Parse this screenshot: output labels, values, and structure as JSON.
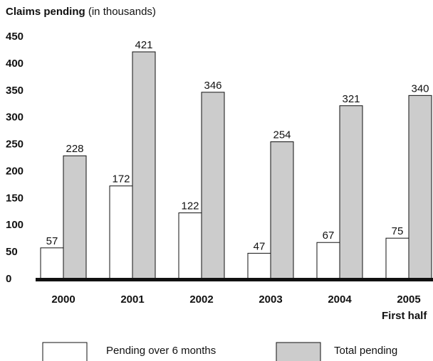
{
  "chart_data": {
    "type": "bar",
    "title": "Claims pending",
    "title_suffix": "(in thousands)",
    "categories": [
      "2000",
      "2001",
      "2002",
      "2003",
      "2004",
      "2005"
    ],
    "category_sublabels": [
      "",
      "",
      "",
      "",
      "",
      "First half"
    ],
    "series": [
      {
        "name": "Pending over 6 months",
        "values": [
          57,
          172,
          122,
          47,
          67,
          75
        ],
        "color": "#ffffff"
      },
      {
        "name": "Total pending",
        "values": [
          228,
          421,
          346,
          254,
          321,
          340
        ],
        "color": "#cccccc"
      }
    ],
    "ylim": [
      0,
      450
    ],
    "yticks": [
      0,
      50,
      100,
      150,
      200,
      250,
      300,
      350,
      400,
      450
    ],
    "grid": false,
    "legend_position": "bottom"
  }
}
